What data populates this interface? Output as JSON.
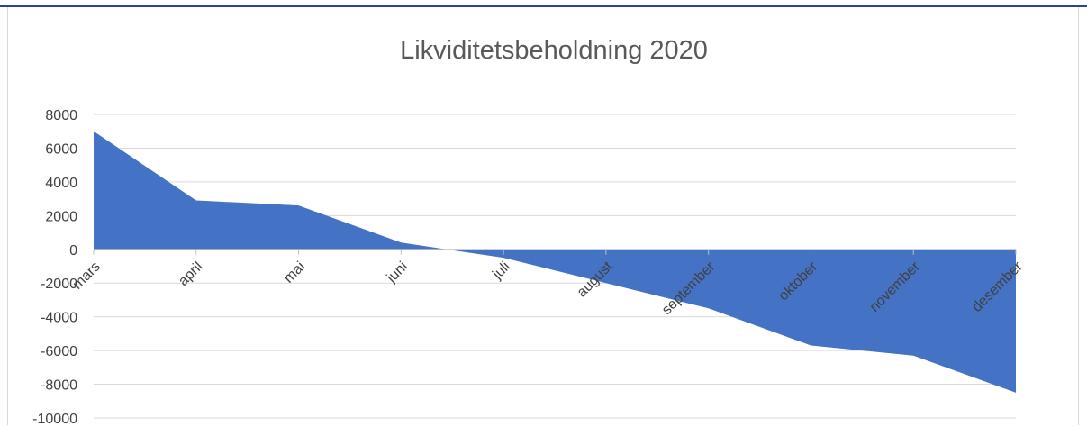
{
  "chart_data": {
    "type": "area",
    "title": "Likviditetsbeholdning 2020",
    "categories": [
      "mars",
      "april",
      "mai",
      "juni",
      "juli",
      "august",
      "september",
      "oktober",
      "november",
      "desember"
    ],
    "series": [
      {
        "values": [
          7000,
          2900,
          2600,
          400,
          -500,
          -2000,
          -3500,
          -5700,
          -6300,
          -8500
        ]
      }
    ],
    "ylim": [
      -10000,
      8000
    ],
    "yticks": [
      8000,
      6000,
      4000,
      2000,
      0,
      -2000,
      -4000,
      -6000,
      -8000,
      -10000
    ],
    "grid": true,
    "legend": "none",
    "color": "#4472c4"
  }
}
